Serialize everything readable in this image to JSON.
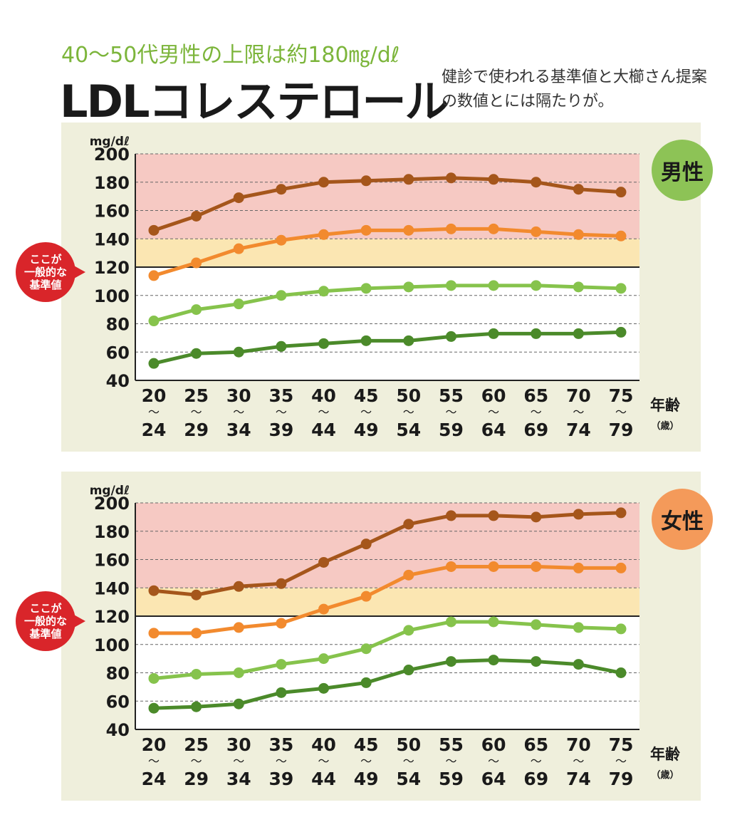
{
  "header": {
    "subtitle": "40〜50代男性の上限は約180㎎/dℓ",
    "title": "LDLコレステロール",
    "note": "健診で使われる基準値と大櫛さん提案の数値とには隔たりが。"
  },
  "callout_label": "ここが\n一般的な\n基準値",
  "colors": {
    "red_zone": "#f6c9c3",
    "yellow_zone": "#fbe6b2",
    "panel_bg": "#efefdc",
    "plot_bg": "#ffffff",
    "series": [
      "#a5561b",
      "#f28a2e",
      "#86c34c",
      "#4b8a2a"
    ],
    "badge_male": "#8dc356",
    "badge_female": "#f49a5a"
  },
  "chart_data": [
    {
      "type": "line",
      "badge": "男性",
      "ylabel": "mg/dℓ",
      "xlabel": "年齢",
      "xunit": "（歳）",
      "ylim": [
        40,
        200
      ],
      "yticks": [
        40,
        60,
        80,
        100,
        120,
        140,
        160,
        180,
        200
      ],
      "grid": true,
      "reference_bands": [
        {
          "from": 120,
          "to": 140,
          "color": "yellow"
        },
        {
          "from": 140,
          "to": 200,
          "color": "red"
        }
      ],
      "reference_line": 120,
      "categories": [
        {
          "from": "20",
          "to": "24"
        },
        {
          "from": "25",
          "to": "29"
        },
        {
          "from": "30",
          "to": "34"
        },
        {
          "from": "35",
          "to": "39"
        },
        {
          "from": "40",
          "to": "44"
        },
        {
          "from": "45",
          "to": "49"
        },
        {
          "from": "50",
          "to": "54"
        },
        {
          "from": "55",
          "to": "59"
        },
        {
          "from": "60",
          "to": "64"
        },
        {
          "from": "65",
          "to": "69"
        },
        {
          "from": "70",
          "to": "74"
        },
        {
          "from": "75",
          "to": "79"
        }
      ],
      "series": [
        {
          "color": "#a5561b",
          "values": [
            146,
            156,
            169,
            175,
            180,
            181,
            182,
            183,
            182,
            180,
            175,
            173
          ]
        },
        {
          "color": "#f28a2e",
          "values": [
            114,
            123,
            133,
            139,
            143,
            146,
            146,
            147,
            147,
            145,
            143,
            142
          ]
        },
        {
          "color": "#86c34c",
          "values": [
            82,
            90,
            94,
            100,
            103,
            105,
            106,
            107,
            107,
            107,
            106,
            105
          ]
        },
        {
          "color": "#4b8a2a",
          "values": [
            52,
            59,
            60,
            64,
            66,
            68,
            68,
            71,
            73,
            73,
            73,
            74
          ]
        }
      ]
    },
    {
      "type": "line",
      "badge": "女性",
      "ylabel": "mg/dℓ",
      "xlabel": "年齢",
      "xunit": "（歳）",
      "ylim": [
        40,
        200
      ],
      "yticks": [
        40,
        60,
        80,
        100,
        120,
        140,
        160,
        180,
        200
      ],
      "grid": true,
      "reference_bands": [
        {
          "from": 120,
          "to": 140,
          "color": "yellow"
        },
        {
          "from": 140,
          "to": 200,
          "color": "red"
        }
      ],
      "reference_line": 120,
      "categories": [
        {
          "from": "20",
          "to": "24"
        },
        {
          "from": "25",
          "to": "29"
        },
        {
          "from": "30",
          "to": "34"
        },
        {
          "from": "35",
          "to": "39"
        },
        {
          "from": "40",
          "to": "44"
        },
        {
          "from": "45",
          "to": "49"
        },
        {
          "from": "50",
          "to": "54"
        },
        {
          "from": "55",
          "to": "59"
        },
        {
          "from": "60",
          "to": "64"
        },
        {
          "from": "65",
          "to": "69"
        },
        {
          "from": "70",
          "to": "74"
        },
        {
          "from": "75",
          "to": "79"
        }
      ],
      "series": [
        {
          "color": "#a5561b",
          "values": [
            138,
            135,
            141,
            143,
            158,
            171,
            185,
            191,
            191,
            190,
            192,
            193
          ]
        },
        {
          "color": "#f28a2e",
          "values": [
            108,
            108,
            112,
            115,
            125,
            134,
            149,
            155,
            155,
            155,
            154,
            154
          ]
        },
        {
          "color": "#86c34c",
          "values": [
            76,
            79,
            80,
            86,
            90,
            97,
            110,
            116,
            116,
            114,
            112,
            111
          ]
        },
        {
          "color": "#4b8a2a",
          "values": [
            55,
            56,
            58,
            66,
            69,
            73,
            82,
            88,
            89,
            88,
            86,
            80
          ]
        }
      ]
    }
  ]
}
